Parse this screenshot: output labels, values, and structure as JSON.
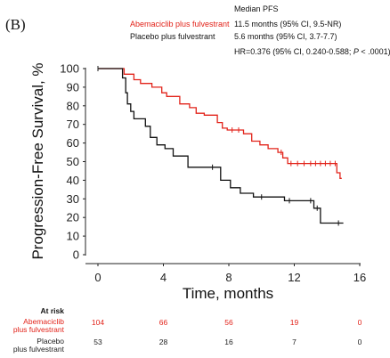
{
  "chart_data": {
    "type": "line",
    "panel_label": "(B)",
    "xlabel": "Time, months",
    "ylabel": "Progression-Free Survival, %",
    "xlim": [
      0,
      16
    ],
    "ylim": [
      0,
      100
    ],
    "x_ticks": [
      "0",
      "4",
      "8",
      "12",
      "16"
    ],
    "y_ticks": [
      "0",
      "10",
      "20",
      "30",
      "40",
      "50",
      "60",
      "70",
      "80",
      "90",
      "100"
    ],
    "grid": false,
    "header": {
      "title": "Median PFS",
      "hr_text": "HR=0.376 (95% CI, 0.240-0.588; ",
      "hr_p": "P",
      "hr_end": " < .0001)"
    },
    "series": [
      {
        "name": "Abemaciclib plus fulvestrant",
        "median_text": "11.5 months (95% CI, 9.5-NR)",
        "color": "#e2231a",
        "points": [
          [
            0,
            100
          ],
          [
            1.6,
            100
          ],
          [
            1.6,
            97
          ],
          [
            2.2,
            97
          ],
          [
            2.2,
            94
          ],
          [
            2.6,
            94
          ],
          [
            2.6,
            92
          ],
          [
            3.3,
            92
          ],
          [
            3.3,
            90
          ],
          [
            3.9,
            90
          ],
          [
            3.9,
            87
          ],
          [
            4.2,
            87
          ],
          [
            4.2,
            85
          ],
          [
            5.0,
            85
          ],
          [
            5.0,
            81
          ],
          [
            5.6,
            81
          ],
          [
            5.6,
            79
          ],
          [
            6.0,
            79
          ],
          [
            6.0,
            76
          ],
          [
            6.5,
            76
          ],
          [
            6.5,
            75
          ],
          [
            7.3,
            75
          ],
          [
            7.3,
            71
          ],
          [
            7.6,
            71
          ],
          [
            7.6,
            68
          ],
          [
            7.9,
            68
          ],
          [
            7.9,
            67
          ],
          [
            8.9,
            67
          ],
          [
            8.9,
            65
          ],
          [
            9.4,
            65
          ],
          [
            9.4,
            61
          ],
          [
            9.9,
            61
          ],
          [
            9.9,
            59
          ],
          [
            10.4,
            59
          ],
          [
            10.4,
            57
          ],
          [
            11.0,
            57
          ],
          [
            11.0,
            55
          ],
          [
            11.3,
            55
          ],
          [
            11.3,
            52
          ],
          [
            11.6,
            52
          ],
          [
            11.6,
            49
          ],
          [
            14.6,
            49
          ],
          [
            14.6,
            44
          ],
          [
            14.8,
            44
          ],
          [
            14.8,
            41
          ],
          [
            14.9,
            41
          ]
        ],
        "censor_x": [
          8.2,
          8.6,
          11.2,
          11.8,
          12.2,
          12.6,
          13.0,
          13.3,
          13.6,
          13.9,
          14.2,
          14.5
        ]
      },
      {
        "name": "Placebo plus fulvestrant",
        "median_text": "5.6 months (95% CI, 3.7-7.7)",
        "color": "#111111",
        "points": [
          [
            0,
            100
          ],
          [
            1.5,
            100
          ],
          [
            1.5,
            95
          ],
          [
            1.7,
            95
          ],
          [
            1.7,
            87
          ],
          [
            1.8,
            87
          ],
          [
            1.8,
            81
          ],
          [
            2.0,
            81
          ],
          [
            2.0,
            77
          ],
          [
            2.2,
            77
          ],
          [
            2.2,
            73
          ],
          [
            2.9,
            73
          ],
          [
            2.9,
            69
          ],
          [
            3.2,
            69
          ],
          [
            3.2,
            63
          ],
          [
            3.6,
            63
          ],
          [
            3.6,
            59
          ],
          [
            4.1,
            59
          ],
          [
            4.1,
            57
          ],
          [
            4.6,
            57
          ],
          [
            4.6,
            53
          ],
          [
            5.5,
            53
          ],
          [
            5.5,
            47
          ],
          [
            7.5,
            47
          ],
          [
            7.5,
            40
          ],
          [
            8.1,
            40
          ],
          [
            8.1,
            36
          ],
          [
            8.7,
            36
          ],
          [
            8.7,
            33
          ],
          [
            9.5,
            33
          ],
          [
            9.5,
            31
          ],
          [
            11.4,
            31
          ],
          [
            11.4,
            29
          ],
          [
            13.2,
            29
          ],
          [
            13.2,
            25
          ],
          [
            13.6,
            25
          ],
          [
            13.6,
            17
          ],
          [
            15.0,
            17
          ]
        ],
        "censor_x": [
          7.0,
          10.0,
          11.7,
          13.0,
          13.4,
          14.7
        ]
      }
    ],
    "at_risk": {
      "label": "At risk",
      "times": [
        0,
        4,
        8,
        12,
        16
      ],
      "rows": [
        {
          "label_line1": "Abemaciclib",
          "label_line2": "plus fulvestrant",
          "values": [
            "104",
            "66",
            "56",
            "19",
            "0"
          ],
          "color": "#e2231a"
        },
        {
          "label_line1": "Placebo",
          "label_line2": "plus fulvestrant",
          "values": [
            "53",
            "28",
            "16",
            "7",
            "0"
          ],
          "color": "#111111"
        }
      ]
    }
  }
}
